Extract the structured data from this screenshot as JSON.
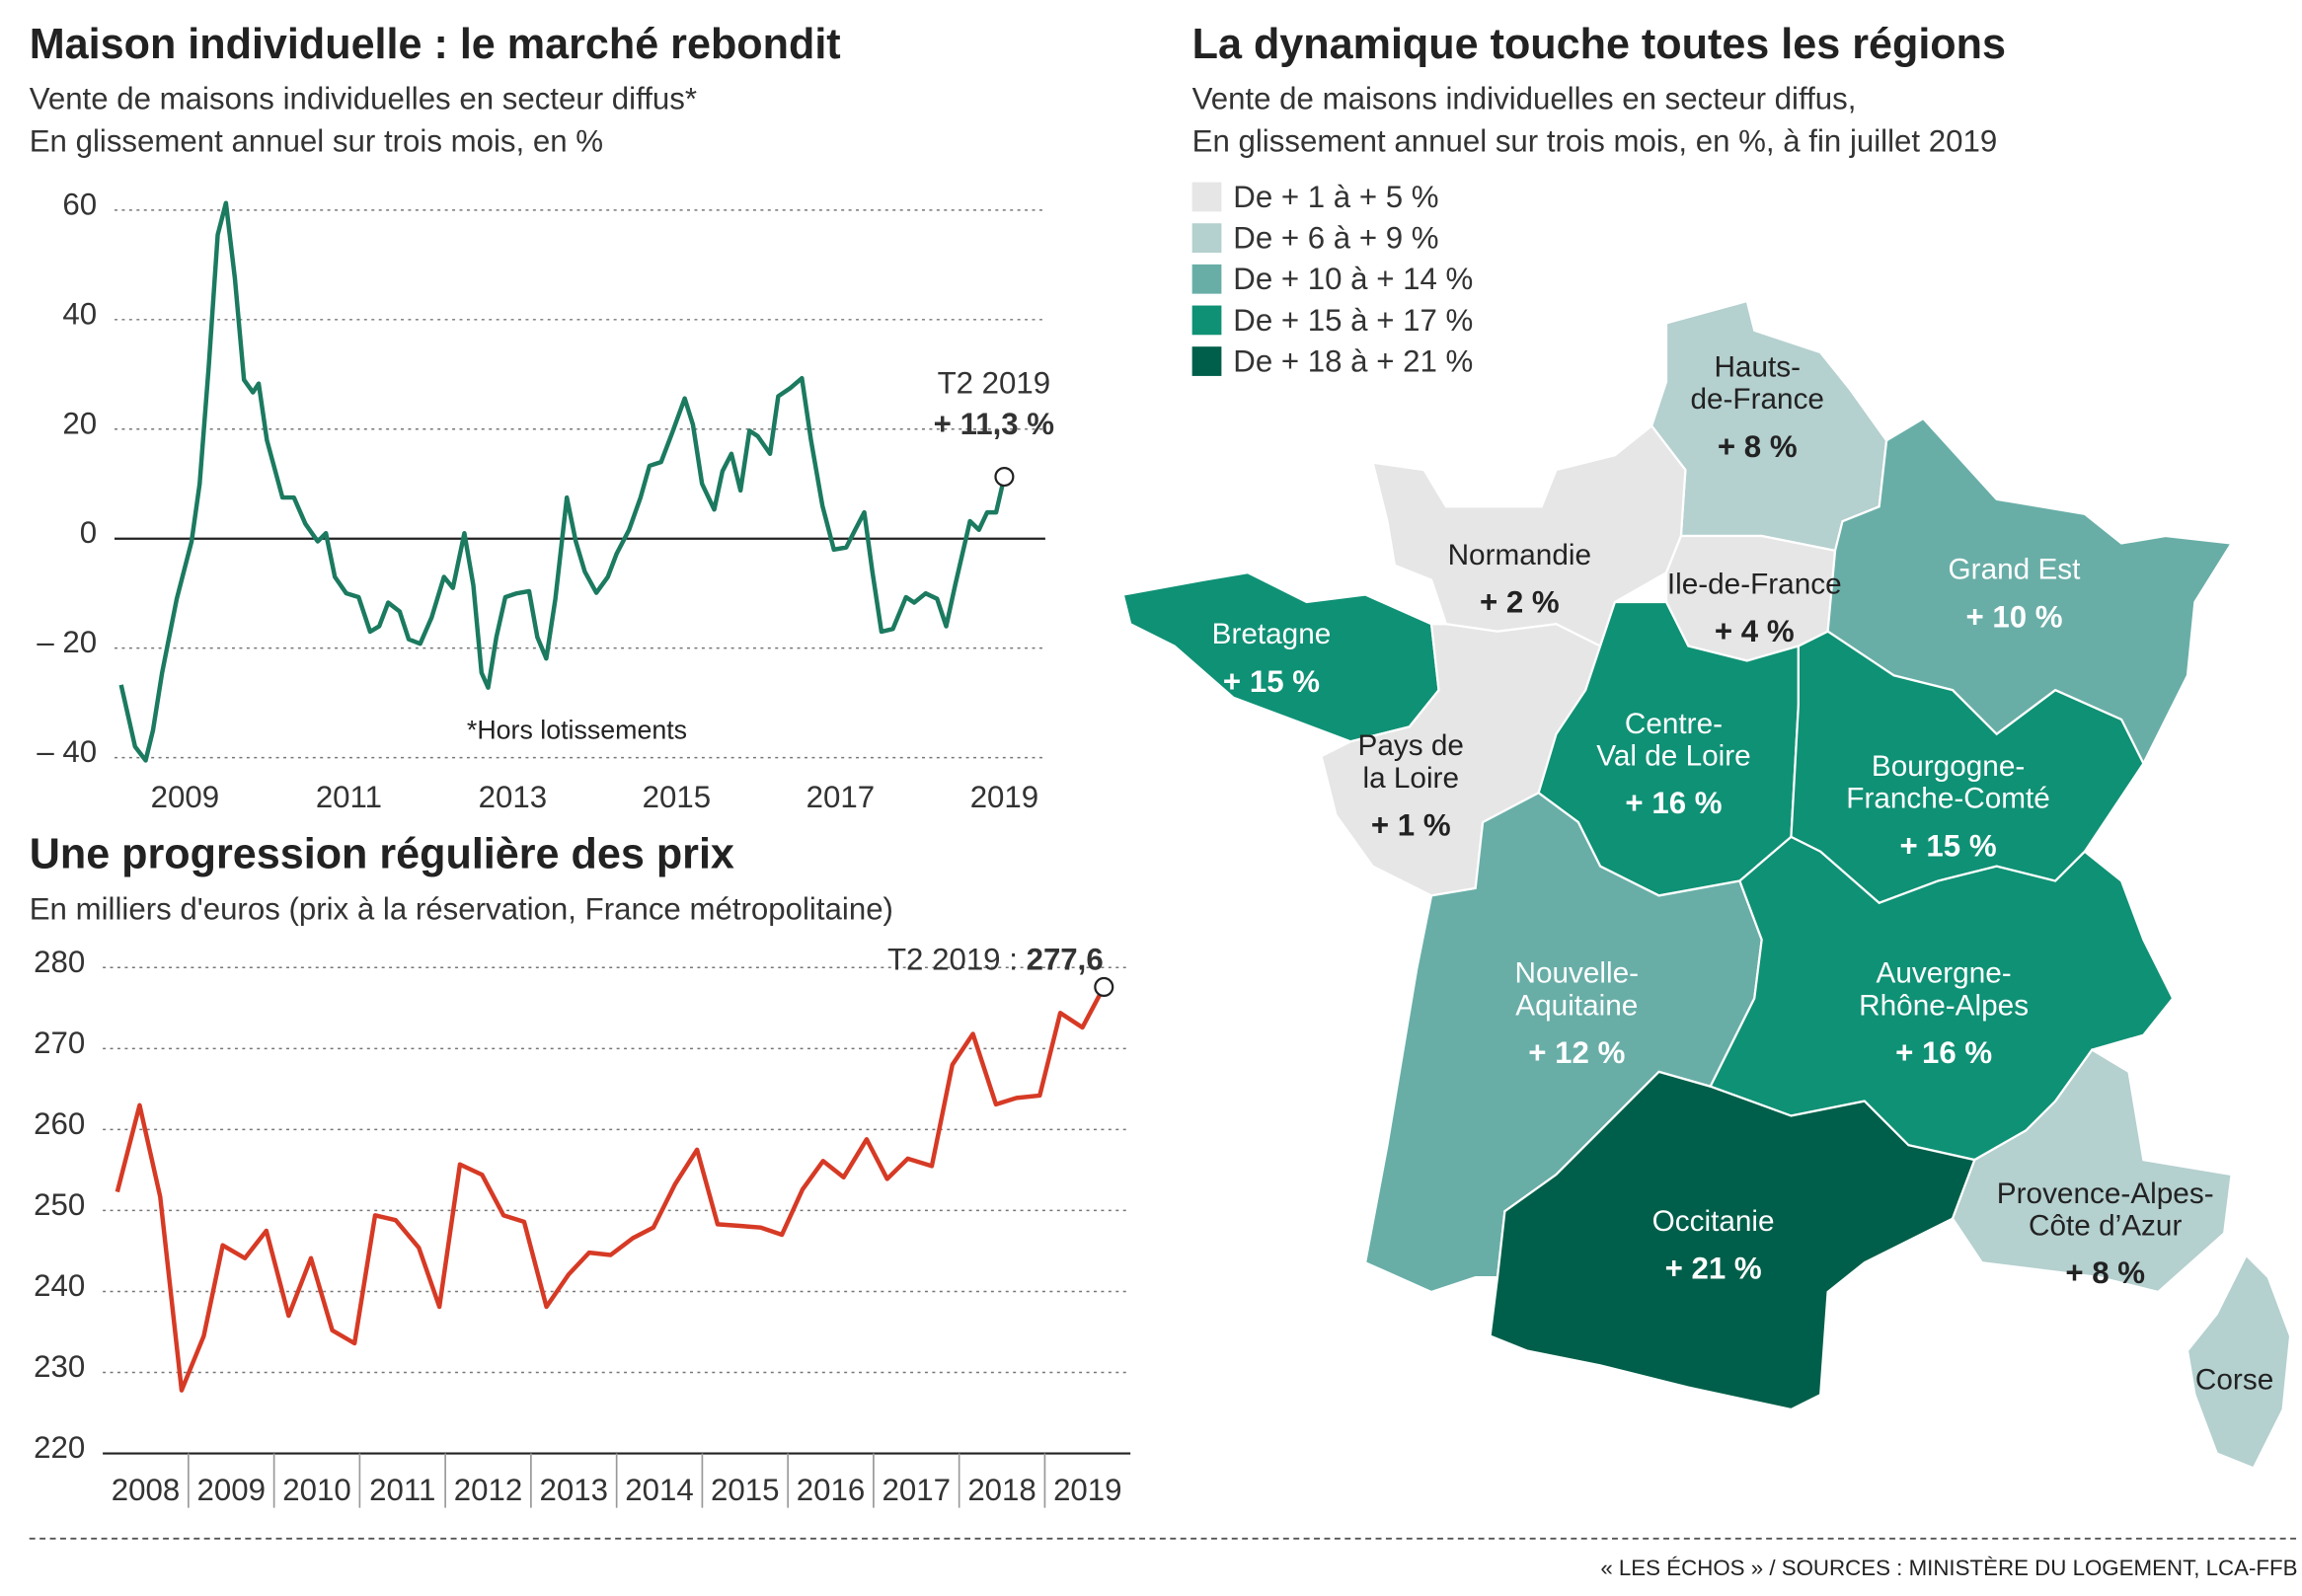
{
  "chart_data": [
    {
      "type": "line",
      "title": "Maison individuelle : le marché rebondit",
      "subtitle": [
        "Vente de maisons individuelles en secteur diffus*",
        "En glissement annuel sur trois mois, en %"
      ],
      "note": "*Hors lotissements",
      "color": "#1b7a5f",
      "zero_line": true,
      "grid": true,
      "x": [
        2008.22,
        2008.39,
        2008.52,
        2008.61,
        2008.72,
        2008.9,
        2009.08,
        2009.18,
        2009.29,
        2009.4,
        2009.5,
        2009.61,
        2009.72,
        2009.83,
        2009.9,
        2010.0,
        2010.19,
        2010.33,
        2010.47,
        2010.62,
        2010.72,
        2010.83,
        2010.97,
        2011.12,
        2011.26,
        2011.37,
        2011.48,
        2011.62,
        2011.73,
        2011.87,
        2012.01,
        2012.16,
        2012.27,
        2012.41,
        2012.52,
        2012.62,
        2012.7,
        2012.8,
        2012.91,
        2013.05,
        2013.2,
        2013.3,
        2013.41,
        2013.52,
        2013.66,
        2013.77,
        2013.88,
        2014.02,
        2014.16,
        2014.27,
        2014.42,
        2014.56,
        2014.67,
        2014.81,
        2014.95,
        2015.1,
        2015.2,
        2015.31,
        2015.46,
        2015.56,
        2015.67,
        2015.78,
        2015.89,
        2015.99,
        2016.14,
        2016.24,
        2016.39,
        2016.53,
        2016.64,
        2016.78,
        2016.92,
        2017.07,
        2017.18,
        2017.29,
        2017.39,
        2017.5,
        2017.64,
        2017.8,
        2017.9,
        2018.04,
        2018.18,
        2018.29,
        2018.4,
        2018.58,
        2018.69,
        2018.79,
        2018.9,
        2019.0
      ],
      "values": [
        -26.7,
        -38,
        -40.5,
        -35,
        -24.5,
        -11,
        -0.5,
        10,
        31.5,
        55.5,
        61.3,
        47.5,
        29,
        26.7,
        28.3,
        18,
        7.5,
        7.5,
        2.7,
        -0.5,
        1,
        -7,
        -10,
        -10.7,
        -17,
        -16,
        -11.7,
        -13.3,
        -18.4,
        -19.2,
        -14.4,
        -7,
        -9,
        1,
        -8.5,
        -24.5,
        -27.2,
        -18,
        -10.7,
        -10,
        -9.6,
        -18,
        -21.9,
        -11,
        7.5,
        -0.5,
        -6,
        -9.9,
        -7,
        -2.7,
        1.6,
        7.5,
        13.3,
        14,
        19.5,
        25.6,
        20.8,
        10,
        5.3,
        12.3,
        15.5,
        8.8,
        19.7,
        18.7,
        15.5,
        26,
        27.5,
        29.3,
        18,
        6,
        -2,
        -1.6,
        1.6,
        4.8,
        -6,
        -17,
        -16.5,
        -10.7,
        -11.7,
        -10,
        -11,
        -16,
        -8.5,
        3.2,
        1.6,
        4.8,
        4.8,
        11.3
      ],
      "end_label": {
        "text": "T2 2019",
        "value_label": "+ 11,3 %"
      },
      "xlim": [
        2008.14,
        2019.5
      ],
      "xticks": [
        2009,
        2011,
        2013,
        2015,
        2017,
        2019
      ],
      "ylim": [
        -40,
        60
      ],
      "yticks": [
        60,
        40,
        20,
        0,
        {
          "value": -20,
          "label": "– 20"
        },
        {
          "value": -40,
          "label": "– 40"
        }
      ]
    },
    {
      "type": "line",
      "title": "Une progression régulière des prix",
      "subtitle": [
        "En milliers d'euros (prix à la réservation, France métropolitaine)"
      ],
      "color": "#d63a25",
      "zero_line": false,
      "grid": true,
      "x": [
        2008.17,
        2008.43,
        2008.67,
        2008.92,
        2009.18,
        2009.4,
        2009.66,
        2009.91,
        2010.17,
        2010.43,
        2010.68,
        2010.94,
        2011.18,
        2011.42,
        2011.69,
        2011.93,
        2012.17,
        2012.43,
        2012.68,
        2012.92,
        2013.18,
        2013.44,
        2013.68,
        2013.93,
        2014.19,
        2014.43,
        2014.68,
        2014.94,
        2015.18,
        2015.44,
        2015.68,
        2015.93,
        2016.17,
        2016.41,
        2016.65,
        2016.92,
        2017.16,
        2017.4,
        2017.68,
        2017.92,
        2018.16,
        2018.43,
        2018.67,
        2018.94,
        2019.18,
        2019.44,
        2019.69
      ],
      "values": [
        252.3,
        263,
        251.7,
        227.8,
        234.5,
        245.7,
        244.1,
        247.5,
        237,
        244.1,
        235.2,
        233.6,
        249.4,
        248.8,
        245.4,
        238.1,
        255.7,
        254.4,
        249.4,
        248.6,
        238.1,
        242.1,
        244.8,
        244.5,
        246.6,
        247.9,
        253.2,
        257.5,
        248.3,
        248.1,
        247.9,
        247,
        252.6,
        256.1,
        254.1,
        258.8,
        253.9,
        256.4,
        255.5,
        268,
        271.8,
        263.1,
        263.9,
        264.2,
        274.4,
        272.6,
        277.6
      ],
      "end_label": {
        "text": "T2 2019 :",
        "value_label": "277,6"
      },
      "xlim": [
        2008,
        2020
      ],
      "xticks": [
        {
          "value": 2008.5,
          "label": "2008"
        },
        {
          "value": 2009.5,
          "label": "2009"
        },
        {
          "value": 2010.5,
          "label": "2010"
        },
        {
          "value": 2011.5,
          "label": "2011"
        },
        {
          "value": 2012.5,
          "label": "2012"
        },
        {
          "value": 2013.5,
          "label": "2013"
        },
        {
          "value": 2014.5,
          "label": "2014"
        },
        {
          "value": 2015.5,
          "label": "2015"
        },
        {
          "value": 2016.5,
          "label": "2016"
        },
        {
          "value": 2017.5,
          "label": "2017"
        },
        {
          "value": 2018.5,
          "label": "2018"
        },
        {
          "value": 2019.5,
          "label": "2019"
        }
      ],
      "ylim": [
        220,
        280
      ],
      "yticks": [
        280,
        270,
        260,
        250,
        240,
        230,
        220
      ]
    },
    {
      "type": "map",
      "title": "La dynamique touche toutes les régions",
      "subtitle": [
        "Vente de maisons individuelles en secteur diffus,",
        "En glissement annuel sur trois mois, en %, à fin juillet 2019"
      ],
      "legend": [
        {
          "label": "De + 1 à + 5 %",
          "color": "#e6e6e6"
        },
        {
          "label": "De + 6 à + 9 %",
          "color": "#b4d0cf"
        },
        {
          "label": "De + 10 à + 14 %",
          "color": "#68aea7"
        },
        {
          "label": "De + 15 à + 17 %",
          "color": "#0f9175"
        },
        {
          "label": "De + 18 à + 21 %",
          "color": "#005f4a"
        }
      ],
      "regions": [
        {
          "name": [
            "Hauts-",
            "de-France"
          ],
          "value": 8,
          "value_label": "+ 8 %",
          "color": "#b4d0cf"
        },
        {
          "name": [
            "Normandie"
          ],
          "value": 2,
          "value_label": "+ 2 %",
          "color": "#e6e6e6"
        },
        {
          "name": [
            "Ile-de-France"
          ],
          "value": 4,
          "value_label": "+ 4 %",
          "color": "#e6e6e6"
        },
        {
          "name": [
            "Grand Est"
          ],
          "value": 10,
          "value_label": "+ 10 %",
          "color": "#68aea7"
        },
        {
          "name": [
            "Bretagne"
          ],
          "value": 15,
          "value_label": "+ 15 %",
          "color": "#0f9175"
        },
        {
          "name": [
            "Pays de",
            "la Loire"
          ],
          "value": 1,
          "value_label": "+ 1 %",
          "color": "#e6e6e6"
        },
        {
          "name": [
            "Centre-",
            "Val de Loire"
          ],
          "value": 16,
          "value_label": "+ 16 %",
          "color": "#0f9175"
        },
        {
          "name": [
            "Bourgogne-",
            "Franche-Comté"
          ],
          "value": 15,
          "value_label": "+ 15 %",
          "color": "#0f9175"
        },
        {
          "name": [
            "Nouvelle-",
            "Aquitaine"
          ],
          "value": 12,
          "value_label": "+ 12 %",
          "color": "#68aea7"
        },
        {
          "name": [
            "Auvergne-",
            "Rhône-Alpes"
          ],
          "value": 16,
          "value_label": "+ 16 %",
          "color": "#0f9175"
        },
        {
          "name": [
            "Occitanie"
          ],
          "value": 21,
          "value_label": "+ 21 %",
          "color": "#005f4a"
        },
        {
          "name": [
            "Provence-Alpes-",
            "Côte d’Azur"
          ],
          "value": 8,
          "value_label": "+ 8 %",
          "color": "#b4d0cf"
        },
        {
          "name": [
            "Corse"
          ],
          "value": null,
          "color": "#b4d0cf"
        }
      ]
    }
  ],
  "source": "« LES ÉCHOS » / SOURCES : MINISTÈRE DU LOGEMENT, LCA-FFB"
}
